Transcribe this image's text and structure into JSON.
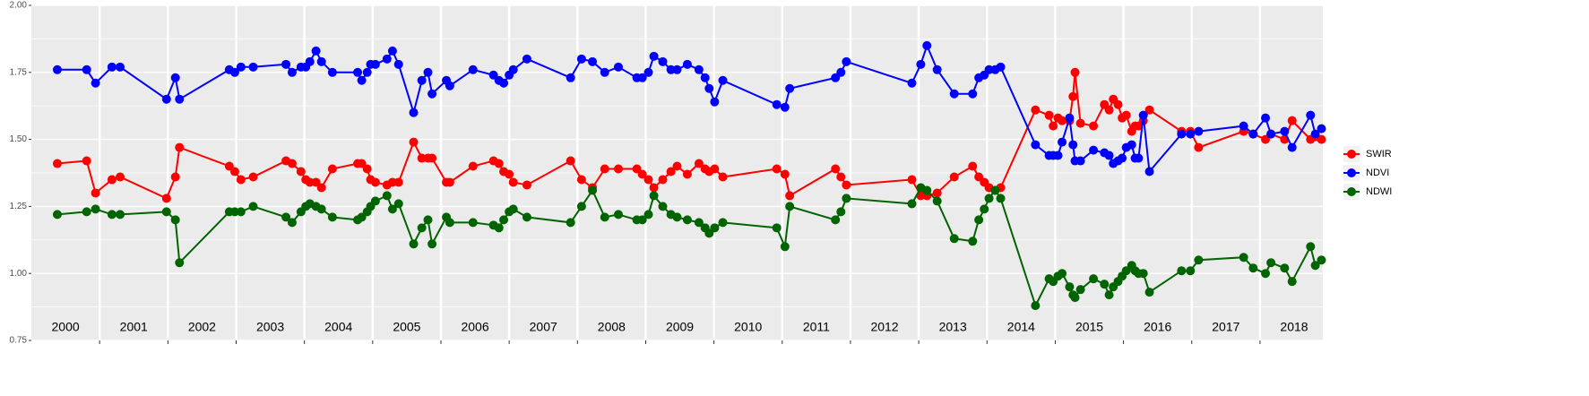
{
  "chart_data": {
    "type": "line",
    "x": [
      2000.38,
      2000.81,
      2000.94,
      2001.18,
      2001.3,
      2001.98,
      2002.11,
      2002.17,
      2002.9,
      2002.98,
      2003.07,
      2003.25,
      2003.73,
      2003.82,
      2003.95,
      2004.02,
      2004.08,
      2004.17,
      2004.25,
      2004.41,
      2004.78,
      2004.84,
      2004.92,
      2004.97,
      2005.04,
      2005.21,
      2005.29,
      2005.38,
      2005.6,
      2005.72,
      2005.81,
      2005.87,
      2006.08,
      2006.13,
      2006.47,
      2006.77,
      2006.85,
      2006.92,
      2007.0,
      2007.06,
      2007.26,
      2007.9,
      2008.06,
      2008.22,
      2008.4,
      2008.6,
      2008.87,
      2008.95,
      2009.04,
      2009.12,
      2009.25,
      2009.37,
      2009.46,
      2009.61,
      2009.78,
      2009.87,
      2009.93,
      2010.01,
      2010.13,
      2010.92,
      2011.04,
      2011.11,
      2011.78,
      2011.86,
      2011.94,
      2012.9,
      2013.03,
      2013.12,
      2013.27,
      2013.52,
      2013.79,
      2013.88,
      2013.96,
      2014.03,
      2014.12,
      2014.2,
      2014.71,
      2014.91,
      2014.97,
      2015.04,
      2015.1,
      2015.21,
      2015.26,
      2015.29,
      2015.37,
      2015.56,
      2015.72,
      2015.79,
      2015.85,
      2015.92,
      2015.98,
      2016.04,
      2016.12,
      2016.17,
      2016.22,
      2016.29,
      2016.38,
      2016.85,
      2016.98,
      2017.1,
      2017.76,
      2017.9,
      2018.08,
      2018.16,
      2018.36,
      2018.47,
      2018.74,
      2018.81,
      2018.9
    ],
    "series": [
      {
        "name": "SWIR",
        "color": "#ff0000",
        "values": [
          1.41,
          1.42,
          1.3,
          1.35,
          1.36,
          1.28,
          1.36,
          1.47,
          1.4,
          1.38,
          1.35,
          1.36,
          1.42,
          1.41,
          1.38,
          1.35,
          1.34,
          1.34,
          1.32,
          1.39,
          1.41,
          1.41,
          1.39,
          1.35,
          1.34,
          1.33,
          1.34,
          1.34,
          1.49,
          1.43,
          1.43,
          1.43,
          1.34,
          1.34,
          1.4,
          1.42,
          1.41,
          1.38,
          1.37,
          1.34,
          1.33,
          1.42,
          1.35,
          1.32,
          1.39,
          1.39,
          1.39,
          1.37,
          1.35,
          1.32,
          1.35,
          1.38,
          1.4,
          1.37,
          1.41,
          1.39,
          1.38,
          1.39,
          1.36,
          1.39,
          1.37,
          1.29,
          1.39,
          1.36,
          1.33,
          1.35,
          1.29,
          1.29,
          1.3,
          1.36,
          1.4,
          1.36,
          1.34,
          1.32,
          1.31,
          1.32,
          1.61,
          1.59,
          1.55,
          1.58,
          1.57,
          1.57,
          1.66,
          1.75,
          1.56,
          1.55,
          1.63,
          1.61,
          1.65,
          1.63,
          1.58,
          1.59,
          1.53,
          1.55,
          1.55,
          1.57,
          1.61,
          1.53,
          1.53,
          1.47,
          1.53,
          1.52,
          1.5,
          1.52,
          1.5,
          1.57,
          1.5,
          1.51,
          1.5
        ]
      },
      {
        "name": "NDVI",
        "color": "#0000ff",
        "values": [
          1.76,
          1.76,
          1.71,
          1.77,
          1.77,
          1.65,
          1.73,
          1.65,
          1.76,
          1.75,
          1.77,
          1.77,
          1.78,
          1.75,
          1.77,
          1.77,
          1.79,
          1.83,
          1.79,
          1.75,
          1.75,
          1.72,
          1.75,
          1.78,
          1.78,
          1.8,
          1.83,
          1.78,
          1.6,
          1.72,
          1.75,
          1.67,
          1.72,
          1.7,
          1.76,
          1.74,
          1.72,
          1.71,
          1.74,
          1.76,
          1.8,
          1.73,
          1.8,
          1.79,
          1.75,
          1.77,
          1.73,
          1.73,
          1.75,
          1.81,
          1.79,
          1.76,
          1.76,
          1.78,
          1.76,
          1.73,
          1.69,
          1.64,
          1.72,
          1.63,
          1.62,
          1.69,
          1.73,
          1.75,
          1.79,
          1.71,
          1.78,
          1.85,
          1.76,
          1.67,
          1.67,
          1.73,
          1.74,
          1.76,
          1.76,
          1.77,
          1.48,
          1.44,
          1.44,
          1.44,
          1.49,
          1.58,
          1.48,
          1.42,
          1.42,
          1.46,
          1.45,
          1.44,
          1.41,
          1.42,
          1.43,
          1.47,
          1.48,
          1.43,
          1.43,
          1.59,
          1.38,
          1.52,
          1.52,
          1.53,
          1.55,
          1.52,
          1.58,
          1.52,
          1.53,
          1.47,
          1.59,
          1.52,
          1.54
        ]
      },
      {
        "name": "NDWI",
        "color": "#006400",
        "values": [
          1.22,
          1.23,
          1.24,
          1.22,
          1.22,
          1.23,
          1.2,
          1.04,
          1.23,
          1.23,
          1.23,
          1.25,
          1.21,
          1.19,
          1.23,
          1.25,
          1.26,
          1.25,
          1.24,
          1.21,
          1.2,
          1.21,
          1.23,
          1.25,
          1.27,
          1.29,
          1.24,
          1.26,
          1.11,
          1.17,
          1.2,
          1.11,
          1.21,
          1.19,
          1.19,
          1.18,
          1.17,
          1.2,
          1.23,
          1.24,
          1.21,
          1.19,
          1.25,
          1.31,
          1.21,
          1.22,
          1.2,
          1.2,
          1.22,
          1.29,
          1.25,
          1.22,
          1.21,
          1.2,
          1.19,
          1.17,
          1.15,
          1.17,
          1.19,
          1.17,
          1.1,
          1.25,
          1.2,
          1.23,
          1.28,
          1.26,
          1.32,
          1.31,
          1.27,
          1.13,
          1.12,
          1.2,
          1.24,
          1.28,
          1.31,
          1.28,
          0.88,
          0.98,
          0.97,
          0.99,
          1.0,
          0.95,
          0.92,
          0.91,
          0.94,
          0.98,
          0.96,
          0.92,
          0.95,
          0.97,
          0.99,
          1.01,
          1.03,
          1.01,
          1.0,
          1.0,
          0.93,
          1.01,
          1.01,
          1.05,
          1.06,
          1.02,
          1.0,
          1.04,
          1.02,
          0.97,
          1.1,
          1.03,
          1.05
        ]
      }
    ],
    "xlim": [
      2000.0,
      2018.92
    ],
    "xticks": [
      2001,
      2002,
      2003,
      2004,
      2005,
      2006,
      2007,
      2008,
      2009,
      2010,
      2011,
      2012,
      2013,
      2014,
      2015,
      2016,
      2017,
      2018
    ],
    "year_labels": [
      2000,
      2001,
      2002,
      2003,
      2004,
      2005,
      2006,
      2007,
      2008,
      2009,
      2010,
      2011,
      2012,
      2013,
      2014,
      2015,
      2016,
      2017,
      2018
    ],
    "ylim": [
      0.75,
      2.0
    ],
    "yticks": [
      {
        "value": 0.75,
        "label": "0.75"
      },
      {
        "value": 1.0,
        "label": "1.00"
      },
      {
        "value": 1.25,
        "label": "1.25"
      },
      {
        "value": 1.5,
        "label": "1.50"
      },
      {
        "value": 1.75,
        "label": "1.75"
      },
      {
        "value": 2.0,
        "label": "2.00"
      }
    ],
    "y_minor_ticks": [
      0.875,
      1.125,
      1.375,
      1.625,
      1.875
    ],
    "grid": true,
    "legend": "right"
  }
}
